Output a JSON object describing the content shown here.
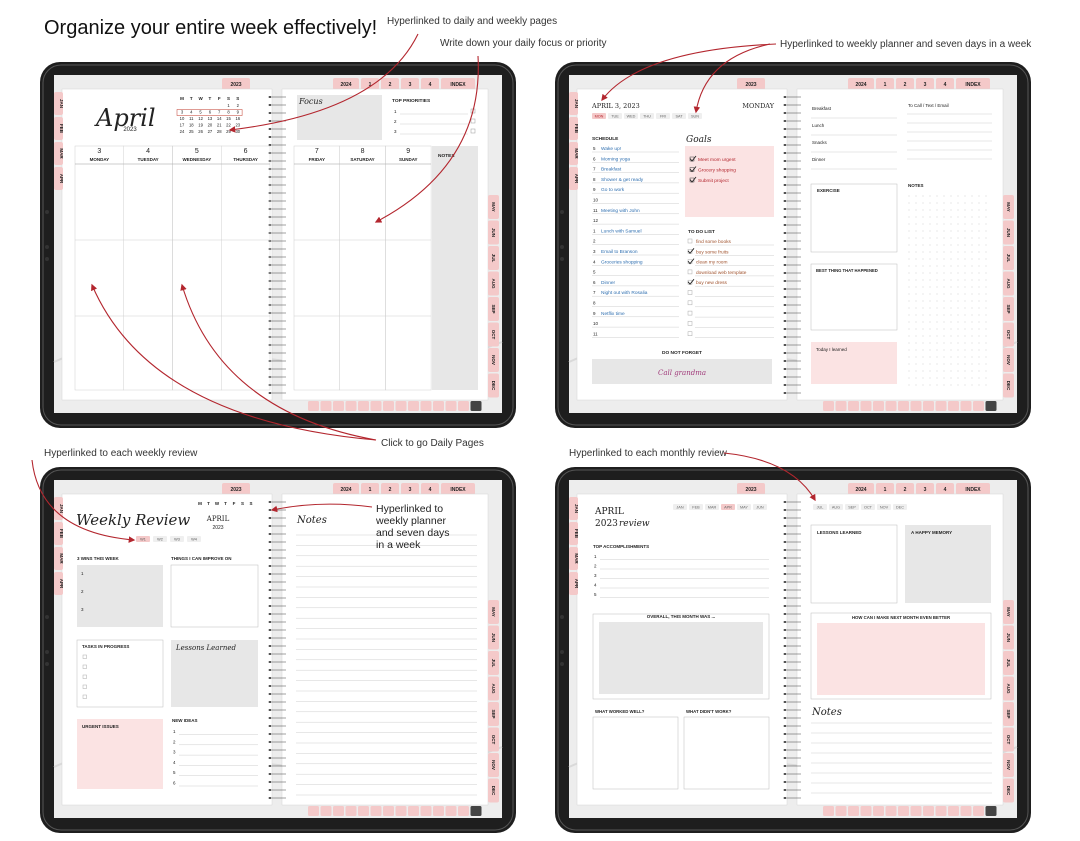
{
  "title": "Organize your entire week effectively!",
  "annotations": {
    "daily_weekly_links": "Hyperlinked to daily and weekly pages",
    "daily_focus": "Write down your daily focus or priority",
    "weekly_planner_links": "Hyperlinked to weekly planner and seven days in a week",
    "daily_pages": "Click to go Daily Pages",
    "weekly_review_links": "Hyperlinked to each weekly review",
    "monthly_review_links": "Hyperlinked to each monthly review",
    "weekly_review_note": [
      "Hyperlinked to",
      "weekly planner",
      "and seven days",
      "in a week"
    ]
  },
  "tabs": {
    "year": "2023",
    "next_year": "2024",
    "quarters": [
      "1",
      "2",
      "3",
      "4"
    ],
    "index": "INDEX",
    "left_months": [
      "JAN",
      "FEB",
      "MAR",
      "APR"
    ],
    "right_months": [
      "MAY",
      "JUN",
      "JUL",
      "AUG",
      "SEP",
      "OCT",
      "NOV",
      "DEC"
    ]
  },
  "weekly": {
    "month": "April",
    "year": "2023",
    "calendar": {
      "weekdays": [
        "M",
        "T",
        "W",
        "T",
        "F",
        "S",
        "S"
      ],
      "days": [
        1,
        2,
        3,
        4,
        5,
        6,
        7,
        8,
        9,
        10,
        11,
        12,
        13,
        14,
        15,
        16,
        17,
        18,
        19,
        20,
        21,
        22,
        23,
        24,
        25,
        26,
        27,
        28,
        29,
        30
      ]
    },
    "days": [
      {
        "date": 3,
        "name": "MONDAY"
      },
      {
        "date": 4,
        "name": "TUESDAY"
      },
      {
        "date": 5,
        "name": "WEDNESDAY"
      },
      {
        "date": 6,
        "name": "THURSDAY"
      },
      {
        "date": 7,
        "name": "FRIDAY"
      },
      {
        "date": 8,
        "name": "SATURDAY"
      },
      {
        "date": 9,
        "name": "SUNDAY"
      }
    ],
    "focus": "Focus",
    "top_priorities": {
      "label": "TOP PRIORITIES",
      "items": [
        1,
        2,
        3
      ]
    },
    "notes": "NOTES"
  },
  "daily": {
    "date": "APRIL 3, 2023",
    "weekday": "MONDAY",
    "week_strip": [
      "MON",
      "TUE",
      "WED",
      "THU",
      "FRI",
      "SAT",
      "SUN"
    ],
    "schedule": {
      "label": "SCHEDULE",
      "rows": [
        {
          "hour": 5,
          "task": "Wake up!"
        },
        {
          "hour": 6,
          "task": "Morning yoga"
        },
        {
          "hour": 7,
          "task": "Breakfast"
        },
        {
          "hour": 8,
          "task": "Shower & get ready"
        },
        {
          "hour": 9,
          "task": "Go to work"
        },
        {
          "hour": 10
        },
        {
          "hour": 11,
          "task": "Meeting with John"
        },
        {
          "hour": 12
        },
        {
          "hour": 1,
          "task": "Lunch with Samuel"
        },
        {
          "hour": 2
        },
        {
          "hour": 3,
          "task": "Email to Branson"
        },
        {
          "hour": 4,
          "task": "Groceries shopping"
        },
        {
          "hour": 5
        },
        {
          "hour": 6,
          "task": "Dinner"
        },
        {
          "hour": 7,
          "task": "Night out with Rosalia"
        },
        {
          "hour": 8
        },
        {
          "hour": 9,
          "task": "Netflix time"
        },
        {
          "hour": 10
        },
        {
          "hour": 11
        }
      ]
    },
    "goals": {
      "label": "Goals",
      "items": [
        "Meet mom urgent",
        "Grocery shopping",
        "Submit project"
      ]
    },
    "todo": {
      "label": "TO DO LIST",
      "items": [
        "find some books",
        "buy some fruits",
        "clean my room",
        "download web template",
        "buy new dress"
      ]
    },
    "do_not_forget": {
      "label": "DO NOT FORGET",
      "note": "Call grandma"
    },
    "meals": [
      "Breakfast",
      "Lunch",
      "Snacks",
      "Dinner"
    ],
    "to_call": "To Call / Text / Email",
    "exercise": "EXERCISE",
    "notes": "NOTES",
    "best_thing": "BEST THING THAT HAPPENED",
    "learned": "Today I learned"
  },
  "weekly_review": {
    "title": "Weekly Review",
    "month": "APRIL",
    "year": "2023",
    "weekdays": [
      "M",
      "T",
      "W",
      "T",
      "F",
      "S",
      "S"
    ],
    "weeks": [
      "W1",
      "W2",
      "W3",
      "W4"
    ],
    "wins": {
      "label": "3 WINS THIS WEEK",
      "items": [
        1,
        2,
        3
      ]
    },
    "improve": "THINGS I CAN IMPROVE ON",
    "tasks": "TASKS IN PROGRESS",
    "lessons": "Lessons Learned",
    "urgent": "URGENT ISSUES",
    "ideas": {
      "label": "NEW IDEAS",
      "items": [
        1,
        2,
        3,
        4,
        5,
        6
      ]
    },
    "notes": "Notes"
  },
  "monthly_review": {
    "month": "APRIL",
    "year": "2023",
    "review": "review",
    "months": [
      "JAN",
      "FEB",
      "MAR",
      "APR",
      "MAY",
      "JUN",
      "JUL",
      "AUG",
      "SEP",
      "OCT",
      "NOV",
      "DEC"
    ],
    "accomplishments": {
      "label": "TOP ACCOMPLISHMENTS",
      "items": [
        1,
        2,
        3,
        4,
        5
      ]
    },
    "overall": "OVERALL, THIS MONTH WAS ...",
    "worked": "WHAT WORKED WELL?",
    "didnt_work": "WHAT DIDN'T WORK?",
    "lessons": "LESSONS LEARNED",
    "memory": "A HAPPY MEMORY",
    "better": "HOW CAN I MAKE NEXT MONTH EVEN BETTER",
    "notes": "Notes"
  }
}
